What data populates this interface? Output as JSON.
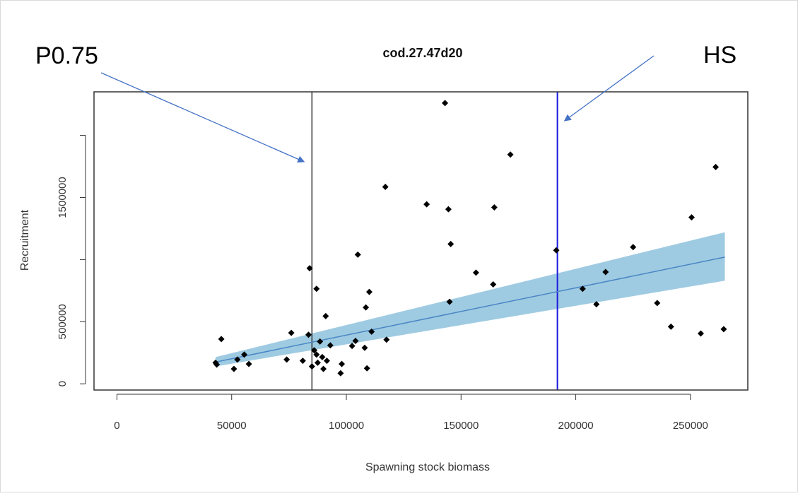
{
  "chart_data": {
    "type": "scatter",
    "title": "cod.27.47d20",
    "xlabel": "Spawning stock biomass",
    "ylabel": "Recruitment",
    "xlim": [
      -10000,
      275000
    ],
    "ylim": [
      -50000,
      2350000
    ],
    "x_ticks": [
      0,
      50000,
      100000,
      150000,
      200000,
      250000
    ],
    "x_tick_labels": [
      "0",
      "50000",
      "100000",
      "150000",
      "200000",
      "250000"
    ],
    "y_ticks": [
      0,
      500000,
      1000000,
      1500000,
      2000000
    ],
    "y_tick_labels": [
      "0",
      "500000",
      "",
      "1500000",
      ""
    ],
    "grid": false,
    "points": [
      {
        "x": 43000,
        "y": 170000
      },
      {
        "x": 43500,
        "y": 155000
      },
      {
        "x": 45500,
        "y": 360000
      },
      {
        "x": 51000,
        "y": 120000
      },
      {
        "x": 52500,
        "y": 195000
      },
      {
        "x": 55500,
        "y": 235000
      },
      {
        "x": 57500,
        "y": 160000
      },
      {
        "x": 74000,
        "y": 195000
      },
      {
        "x": 76000,
        "y": 410000
      },
      {
        "x": 81000,
        "y": 185000
      },
      {
        "x": 83500,
        "y": 395000
      },
      {
        "x": 84000,
        "y": 930000
      },
      {
        "x": 85000,
        "y": 140000
      },
      {
        "x": 86000,
        "y": 270000
      },
      {
        "x": 87000,
        "y": 765000
      },
      {
        "x": 87000,
        "y": 235000
      },
      {
        "x": 87500,
        "y": 170000
      },
      {
        "x": 88500,
        "y": 340000
      },
      {
        "x": 89500,
        "y": 215000
      },
      {
        "x": 90000,
        "y": 120000
      },
      {
        "x": 91000,
        "y": 545000
      },
      {
        "x": 91500,
        "y": 185000
      },
      {
        "x": 93000,
        "y": 310000
      },
      {
        "x": 97500,
        "y": 85000
      },
      {
        "x": 98000,
        "y": 160000
      },
      {
        "x": 102500,
        "y": 305000
      },
      {
        "x": 104000,
        "y": 345000
      },
      {
        "x": 105000,
        "y": 1040000
      },
      {
        "x": 108000,
        "y": 290000
      },
      {
        "x": 108500,
        "y": 615000
      },
      {
        "x": 109000,
        "y": 125000
      },
      {
        "x": 110000,
        "y": 740000
      },
      {
        "x": 111000,
        "y": 420000
      },
      {
        "x": 117000,
        "y": 1585000
      },
      {
        "x": 117500,
        "y": 355000
      },
      {
        "x": 135000,
        "y": 1445000
      },
      {
        "x": 143000,
        "y": 2260000
      },
      {
        "x": 144500,
        "y": 1405000
      },
      {
        "x": 145000,
        "y": 660000
      },
      {
        "x": 145500,
        "y": 1125000
      },
      {
        "x": 156500,
        "y": 895000
      },
      {
        "x": 164000,
        "y": 800000
      },
      {
        "x": 164500,
        "y": 1420000
      },
      {
        "x": 171500,
        "y": 1845000
      },
      {
        "x": 191500,
        "y": 1075000
      },
      {
        "x": 203000,
        "y": 765000
      },
      {
        "x": 209000,
        "y": 640000
      },
      {
        "x": 213000,
        "y": 900000
      },
      {
        "x": 225000,
        "y": 1100000
      },
      {
        "x": 235500,
        "y": 650000
      },
      {
        "x": 241500,
        "y": 460000
      },
      {
        "x": 250500,
        "y": 1340000
      },
      {
        "x": 254500,
        "y": 405000
      },
      {
        "x": 261000,
        "y": 1745000
      },
      {
        "x": 264500,
        "y": 440000
      }
    ],
    "fit_line": {
      "x": [
        43000,
        265000
      ],
      "y": [
        175000,
        1020000
      ],
      "color": "#4a86c5"
    },
    "confidence_band": {
      "x": [
        43000,
        265000
      ],
      "lower": [
        140000,
        830000
      ],
      "upper": [
        215000,
        1220000
      ],
      "color": "#9fcbe2"
    },
    "vlines": [
      {
        "x": 85000,
        "color": "#333333"
      },
      {
        "x": 192000,
        "color": "#1a1adf"
      }
    ],
    "annotations": [
      {
        "text": "P0.75",
        "target_x": 85000
      },
      {
        "text": "HS",
        "target_x": 192000
      }
    ],
    "arrow_color": "#4472c4",
    "point_color": "#000000"
  }
}
